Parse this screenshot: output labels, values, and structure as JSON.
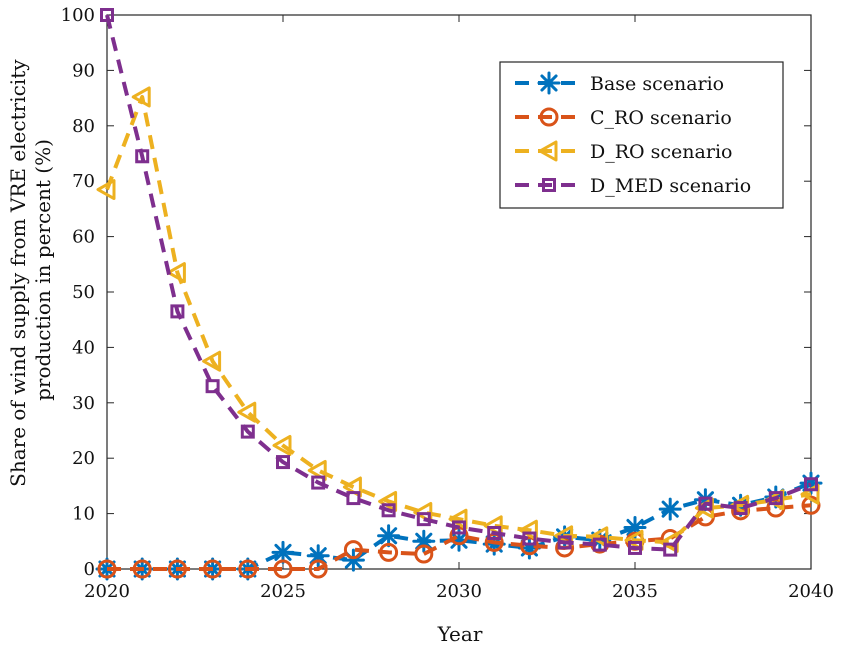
{
  "chart_data": {
    "type": "line",
    "title": "",
    "xlabel": "Year",
    "ylabel": [
      "Share of wind supply from VRE electricity",
      "production in percent (%)"
    ],
    "xlim": [
      2020,
      2040
    ],
    "ylim": [
      0,
      100
    ],
    "xticks": [
      2020,
      2025,
      2030,
      2035,
      2040
    ],
    "yticks": [
      0,
      10,
      20,
      30,
      40,
      50,
      60,
      70,
      80,
      90,
      100
    ],
    "grid": false,
    "legend_position": "top-right",
    "x": [
      2020,
      2021,
      2022,
      2023,
      2024,
      2025,
      2026,
      2027,
      2028,
      2029,
      2030,
      2031,
      2032,
      2033,
      2034,
      2035,
      2036,
      2037,
      2038,
      2039,
      2040
    ],
    "series": [
      {
        "name": "Base scenario",
        "color": "#0072BD",
        "marker": "asterisk",
        "values": [
          0,
          0,
          0,
          0,
          0,
          3,
          2.4,
          1.6,
          6,
          5,
          5.2,
          4.5,
          3.8,
          5.8,
          5.2,
          7.5,
          10.8,
          12.5,
          11.5,
          13,
          15.5
        ]
      },
      {
        "name": "C_RO scenario",
        "color": "#D95319",
        "marker": "circle",
        "values": [
          0,
          0,
          0,
          0,
          0,
          0,
          0,
          3.5,
          3,
          2.7,
          6,
          4.8,
          4.2,
          3.8,
          4.5,
          5,
          5.5,
          9.4,
          10.5,
          11,
          11.5
        ]
      },
      {
        "name": "D_RO scenario",
        "color": "#EDB120",
        "marker": "triangle-left",
        "values": [
          68.5,
          85.2,
          53.5,
          37.5,
          28.3,
          22.3,
          17.8,
          14.8,
          12.2,
          10.2,
          9,
          7.8,
          7,
          6,
          5.8,
          5.2,
          4.8,
          11,
          11.5,
          12.5,
          13.5
        ]
      },
      {
        "name": "D_MED scenario",
        "color": "#7E2F8E",
        "marker": "square",
        "values": [
          100,
          74.5,
          46.5,
          33,
          24.8,
          19.3,
          15.6,
          12.8,
          10.6,
          9,
          7.5,
          6.5,
          5.5,
          4.8,
          4.4,
          3.8,
          3.5,
          11.8,
          11,
          12.8,
          15.3
        ]
      }
    ]
  }
}
